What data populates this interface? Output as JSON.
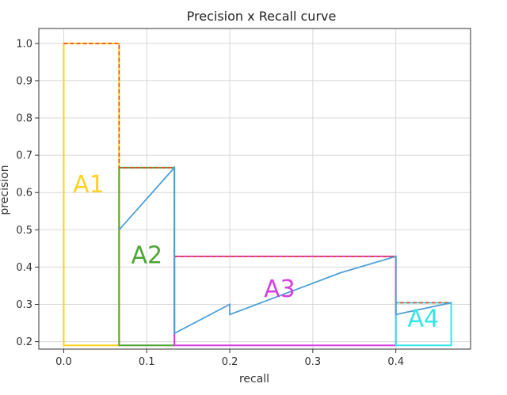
{
  "chart_data": {
    "type": "line",
    "title": "Precision x Recall curve",
    "xlabel": "recall",
    "ylabel": "precision",
    "xlim": [
      -0.03,
      0.49
    ],
    "ylim": [
      0.18,
      1.04
    ],
    "grid": true,
    "x_ticks": [
      0.0,
      0.1,
      0.2,
      0.3,
      0.4
    ],
    "x_tick_labels": [
      "0.0",
      "0.1",
      "0.2",
      "0.3",
      "0.4"
    ],
    "y_ticks": [
      0.2,
      0.3,
      0.4,
      0.5,
      0.6,
      0.7,
      0.8,
      0.9,
      1.0
    ],
    "y_tick_labels": [
      "0.2",
      "0.3",
      "0.4",
      "0.5",
      "0.6",
      "0.7",
      "0.8",
      "0.9",
      "1.0"
    ],
    "pr_curve": {
      "color": "#4da0d8",
      "x": [
        0.0667,
        0.1333,
        0.1333,
        0.2,
        0.2,
        0.3333,
        0.4,
        0.4,
        0.4667
      ],
      "y": [
        0.5,
        0.6667,
        0.2222,
        0.3,
        0.2727,
        0.3846,
        0.4286,
        0.2727,
        0.3043
      ]
    },
    "interpolated_curve": {
      "color": "#e8452b",
      "x": [
        0.0,
        0.0667,
        0.0667,
        0.1333,
        0.1333,
        0.4,
        0.4,
        0.4667
      ],
      "y": [
        1.0,
        1.0,
        0.6667,
        0.6667,
        0.4286,
        0.4286,
        0.3043,
        0.3043
      ]
    },
    "regions": [
      {
        "label": "A1",
        "color": "#ffd21f",
        "x0": 0.0,
        "x1": 0.0667,
        "y_top": 1.0,
        "label_x": 0.03,
        "label_y": 0.6
      },
      {
        "label": "A2",
        "color": "#4ea534",
        "x0": 0.0667,
        "x1": 0.1333,
        "y_top": 0.6667,
        "label_x": 0.1,
        "label_y": 0.41
      },
      {
        "label": "A3",
        "color": "#d63fe0",
        "x0": 0.1333,
        "x1": 0.4,
        "y_top": 0.4286,
        "label_x": 0.26,
        "label_y": 0.32
      },
      {
        "label": "A4",
        "color": "#34e6e6",
        "x0": 0.4,
        "x1": 0.4667,
        "y_top": 0.3043,
        "label_x": 0.433,
        "label_y": 0.24
      }
    ],
    "region_bottom": 0.19
  }
}
